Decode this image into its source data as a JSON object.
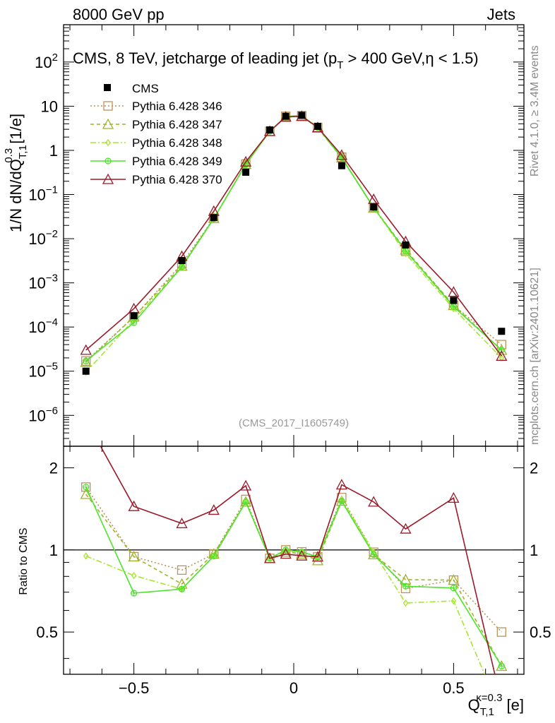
{
  "header": {
    "left": "8000 GeV pp",
    "right": "Jets"
  },
  "side_text": {
    "rivet": "Rivet 4.1.0, ≥ 3.4M events",
    "mcplots": "mcplots.cern.ch [arXiv:2401.10621]"
  },
  "analysis_id": "(CMS_2017_I1605749)",
  "chart_data": {
    "type": "line",
    "title_parts": [
      "CMS, 8 TeV, jetcharge of leading jet (p",
      "T",
      " > 400 GeV,η < 1.5)"
    ],
    "ylabel_parts": [
      "1/N dN/dQ",
      "T,1",
      "0.3",
      " [1/e]"
    ],
    "xlabel_parts": [
      "Q",
      "T,1",
      "κ=0.3",
      " [e]"
    ],
    "ratio_ylabel": "Ratio to CMS",
    "x": [
      -0.65,
      -0.5,
      -0.35,
      -0.25,
      -0.15,
      -0.075,
      -0.025,
      0.025,
      0.075,
      0.15,
      0.25,
      0.35,
      0.5,
      0.65
    ],
    "xlim": [
      -0.72,
      0.72
    ],
    "ylim": [
      2e-07,
      700
    ],
    "ratio_ylim": [
      0.35,
      2.4
    ],
    "x_ticks": [
      -0.5,
      0,
      0.5
    ],
    "x_tick_labels": [
      "−0.5",
      "0",
      "0.5"
    ],
    "y_ticks": [
      {
        "v": 1e-06,
        "base": "10",
        "exp": "−6"
      },
      {
        "v": 1e-05,
        "base": "10",
        "exp": "−5"
      },
      {
        "v": 0.0001,
        "base": "10",
        "exp": "−4"
      },
      {
        "v": 0.001,
        "base": "10",
        "exp": "−3"
      },
      {
        "v": 0.01,
        "base": "10",
        "exp": "−2"
      },
      {
        "v": 0.1,
        "base": "10",
        "exp": "−1"
      },
      {
        "v": 1,
        "base": "1",
        "exp": ""
      },
      {
        "v": 10,
        "base": "10",
        "exp": ""
      },
      {
        "v": 100,
        "base": "10",
        "exp": "2"
      }
    ],
    "ratio_ticks": [
      {
        "v": 0.5,
        "label": "0.5"
      },
      {
        "v": 1,
        "label": "1"
      },
      {
        "v": 2,
        "label": "2"
      }
    ],
    "data": {
      "name": "CMS",
      "values": [
        1e-05,
        0.00018,
        0.0032,
        0.03,
        0.32,
        2.9,
        5.9,
        6.2,
        3.5,
        0.45,
        0.052,
        0.0072,
        0.0004,
        8e-05
      ]
    },
    "series": [
      {
        "name": "Pythia 6.428 346",
        "color": "#b8945a",
        "dash": "2,3",
        "marker": "square",
        "values": [
          1.7e-05,
          0.00017,
          0.0027,
          0.029,
          0.49,
          2.7,
          5.9,
          6.1,
          3.3,
          0.7,
          0.051,
          0.0052,
          0.00031,
          4e-05
        ]
      },
      {
        "name": "Pythia 6.428 347",
        "color": "#9fb42a",
        "dash": "5,4",
        "marker": "triangle",
        "values": [
          1.6e-05,
          0.00017,
          0.0024,
          0.029,
          0.48,
          2.7,
          5.8,
          6.0,
          3.2,
          0.68,
          0.05,
          0.0056,
          0.00031,
          3e-05
        ]
      },
      {
        "name": "Pythia 6.428 348",
        "color": "#a6e62e",
        "dash": "8,3,2,3",
        "marker": "diamond",
        "values": [
          9.5e-06,
          0.000145,
          0.0023,
          0.0285,
          0.48,
          2.7,
          5.9,
          6.1,
          3.3,
          0.69,
          0.051,
          0.0046,
          0.00026,
          2e-05
        ]
      },
      {
        "name": "Pythia 6.428 349",
        "color": "#4ce52a",
        "dash": "",
        "marker": "circle-plus",
        "values": [
          1.7e-05,
          0.000125,
          0.0023,
          0.0285,
          0.48,
          2.7,
          5.9,
          6.1,
          3.3,
          0.68,
          0.05,
          0.0053,
          0.00029,
          3e-05
        ]
      },
      {
        "name": "Pythia 6.428 370",
        "color": "#9a1a2a",
        "dash": "",
        "marker": "triangle",
        "values": [
          3e-05,
          0.00026,
          0.004,
          0.042,
          0.55,
          2.7,
          5.7,
          5.9,
          3.3,
          0.78,
          0.078,
          0.0086,
          0.00062,
          2.2e-05
        ]
      }
    ]
  }
}
